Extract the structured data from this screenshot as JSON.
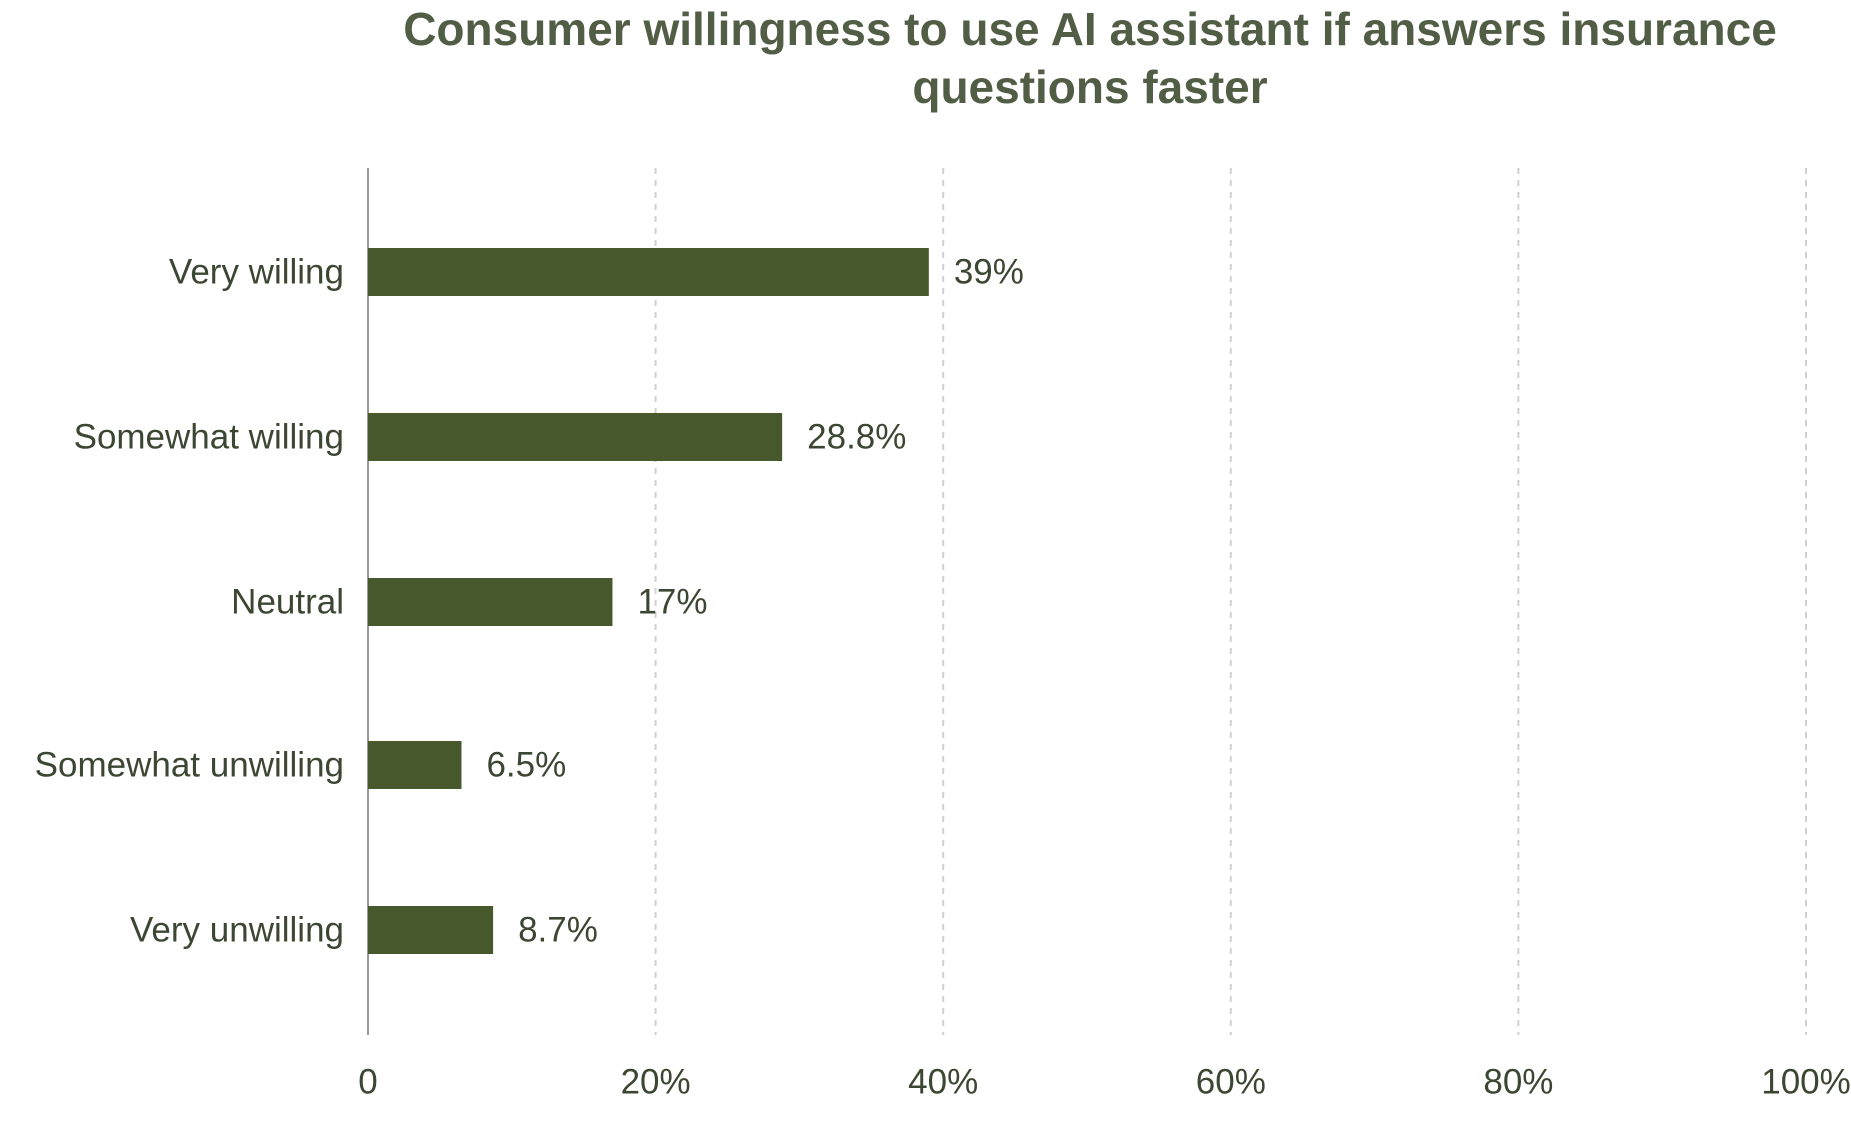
{
  "chart_data": {
    "type": "bar",
    "orientation": "horizontal",
    "title": "Consumer willingness to use AI assistant if answers insurance questions faster",
    "categories": [
      "Very willing",
      "Somewhat willing",
      "Neutral",
      "Somewhat unwilling",
      "Very unwilling"
    ],
    "values": [
      39,
      28.8,
      17,
      6.5,
      8.7
    ],
    "value_labels": [
      "39%",
      "28.8%",
      "17%",
      "6.5%",
      "8.7%"
    ],
    "x_ticks": [
      "0",
      "20%",
      "40%",
      "60%",
      "80%",
      "100%"
    ],
    "x_tick_values": [
      0,
      20,
      40,
      60,
      80,
      100
    ],
    "xlim": [
      0,
      100
    ],
    "xlabel": "",
    "ylabel": "",
    "grid": "vertical dashed",
    "legend": "none",
    "colors": {
      "bar": "#47582c",
      "title": "#525d46",
      "text": "#3c4733",
      "axis": "#999999",
      "grid": "#d0d0d0"
    }
  }
}
